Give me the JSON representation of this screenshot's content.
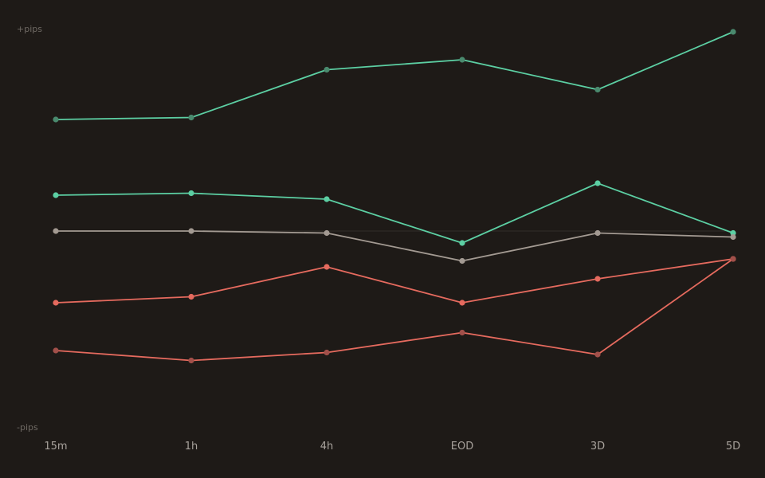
{
  "chart_data": {
    "type": "line",
    "title": "",
    "xlabel": "",
    "ylabel": "",
    "y_top_label": "+pips",
    "y_bottom_label": "-pips",
    "categories": [
      "15m",
      "1h",
      "4h",
      "EOD",
      "3D",
      "5D"
    ],
    "ylim": [
      -100,
      100
    ],
    "zero_line": true,
    "grid": false,
    "legend": "none",
    "colors": {
      "background": "#1e1a17",
      "positive": "#5ccfa3",
      "positive_muted": "#4a8a6e",
      "neutral": "#a39a92",
      "negative": "#e56a5e",
      "negative_muted": "#a2504a",
      "zero_line": "#332e2a"
    },
    "series": [
      {
        "values": [
          56,
          57,
          81,
          86,
          71,
          100
        ],
        "color": "#5ccfa3",
        "point_color": "#4a8a6e"
      },
      {
        "values": [
          18,
          19,
          16,
          -6,
          24,
          -1
        ],
        "color": "#5ccfa3",
        "point_color": "#5ccfa3"
      },
      {
        "values": [
          0,
          0,
          -1,
          -15,
          -1,
          -3
        ],
        "color": "#a39a92",
        "point_color": "#a39a92"
      },
      {
        "values": [
          -36,
          -33,
          -18,
          -36,
          -24,
          -14
        ],
        "color": "#e56a5e",
        "point_color": "#e56a5e"
      },
      {
        "values": [
          -60,
          -65,
          -61,
          -51,
          -62,
          -14
        ],
        "color": "#e56a5e",
        "point_color": "#a2504a"
      }
    ]
  }
}
